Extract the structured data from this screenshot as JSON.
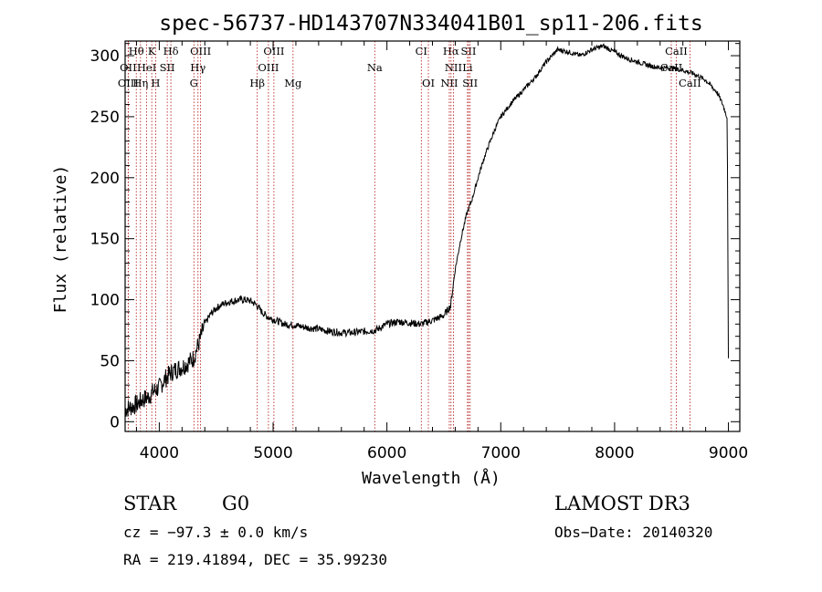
{
  "chart_data": {
    "type": "line",
    "title": "spec-56737-HD143707N334041B01_sp11-206.fits",
    "xlabel": "Wavelength (Å)",
    "ylabel": "Flux (relative)",
    "xlim": [
      3700,
      9100
    ],
    "ylim": [
      -8,
      312
    ],
    "xticks": [
      4000,
      5000,
      6000,
      7000,
      8000,
      9000
    ],
    "yticks": [
      0,
      50,
      100,
      150,
      200,
      250,
      300
    ],
    "series": [
      {
        "name": "spectrum",
        "x": [
          3700,
          3750,
          3800,
          3850,
          3900,
          3950,
          4000,
          4050,
          4100,
          4150,
          4200,
          4250,
          4300,
          4350,
          4400,
          4450,
          4500,
          4550,
          4600,
          4650,
          4700,
          4750,
          4800,
          4850,
          4900,
          4950,
          5000,
          5100,
          5200,
          5300,
          5400,
          5500,
          5600,
          5700,
          5800,
          5900,
          6000,
          6100,
          6200,
          6300,
          6400,
          6500,
          6560,
          6600,
          6650,
          6700,
          6750,
          6800,
          6850,
          6900,
          6950,
          7000,
          7100,
          7200,
          7300,
          7400,
          7500,
          7600,
          7700,
          7800,
          7900,
          8000,
          8100,
          8200,
          8300,
          8400,
          8500,
          8600,
          8700,
          8800,
          8900,
          8950,
          8990,
          9000
        ],
        "y": [
          10,
          12,
          14,
          18,
          20,
          25,
          28,
          35,
          40,
          43,
          45,
          48,
          52,
          65,
          80,
          88,
          93,
          96,
          98,
          99,
          100,
          100,
          99,
          96,
          90,
          86,
          84,
          80,
          79,
          77,
          76,
          74,
          73,
          73,
          74,
          75,
          80,
          82,
          81,
          80,
          83,
          87,
          95,
          125,
          150,
          170,
          183,
          200,
          215,
          228,
          240,
          250,
          262,
          272,
          282,
          295,
          305,
          303,
          300,
          305,
          308,
          303,
          298,
          295,
          292,
          290,
          290,
          288,
          285,
          280,
          270,
          260,
          249,
          52
        ]
      }
    ],
    "lines": [
      {
        "label": "Hθ",
        "wl": 3798,
        "row": 0
      },
      {
        "label": "K",
        "wl": 3934,
        "row": 0
      },
      {
        "label": "Hδ",
        "wl": 4102,
        "row": 0
      },
      {
        "label": "OIII",
        "wl": 4363,
        "row": 0
      },
      {
        "label": "OIII",
        "wl": 5007,
        "row": 0
      },
      {
        "label": "CI",
        "wl": 6302,
        "row": 0
      },
      {
        "label": "Hα",
        "wl": 6563,
        "row": 0
      },
      {
        "label": "SII",
        "wl": 6717,
        "row": 0
      },
      {
        "label": "CaII",
        "wl": 8542,
        "row": 0
      },
      {
        "label": "OII",
        "wl": 3727,
        "row": 1
      },
      {
        "label": "HeI",
        "wl": 3889,
        "row": 1
      },
      {
        "label": "SII",
        "wl": 4070,
        "row": 1
      },
      {
        "label": "Hγ",
        "wl": 4340,
        "row": 1
      },
      {
        "label": "OIII",
        "wl": 4959,
        "row": 1
      },
      {
        "label": "Na",
        "wl": 5893,
        "row": 1
      },
      {
        "label": "NII",
        "wl": 6584,
        "row": 1
      },
      {
        "label": "Li",
        "wl": 6708,
        "row": 1
      },
      {
        "label": "CaII",
        "wl": 8498,
        "row": 1
      },
      {
        "label": "OIII",
        "wl": 3727,
        "row": 2
      },
      {
        "label": "Hη",
        "wl": 3835,
        "row": 2
      },
      {
        "label": "H",
        "wl": 3968,
        "row": 2
      },
      {
        "label": "G",
        "wl": 4304,
        "row": 2
      },
      {
        "label": "Hβ",
        "wl": 4861,
        "row": 2
      },
      {
        "label": "Mg",
        "wl": 5175,
        "row": 2
      },
      {
        "label": "OI",
        "wl": 6364,
        "row": 2
      },
      {
        "label": "NII",
        "wl": 6548,
        "row": 2
      },
      {
        "label": "SII",
        "wl": 6731,
        "row": 2
      },
      {
        "label": "CaII",
        "wl": 8662,
        "row": 2
      }
    ]
  },
  "info": {
    "class": "STAR",
    "subclass": "G0",
    "survey": "LAMOST DR3",
    "cz": "cz = −97.3 ± 0.0 km/s",
    "obs_date": "Obs−Date: 20140320",
    "coords": "RA = 219.41894, DEC =  35.99230"
  }
}
